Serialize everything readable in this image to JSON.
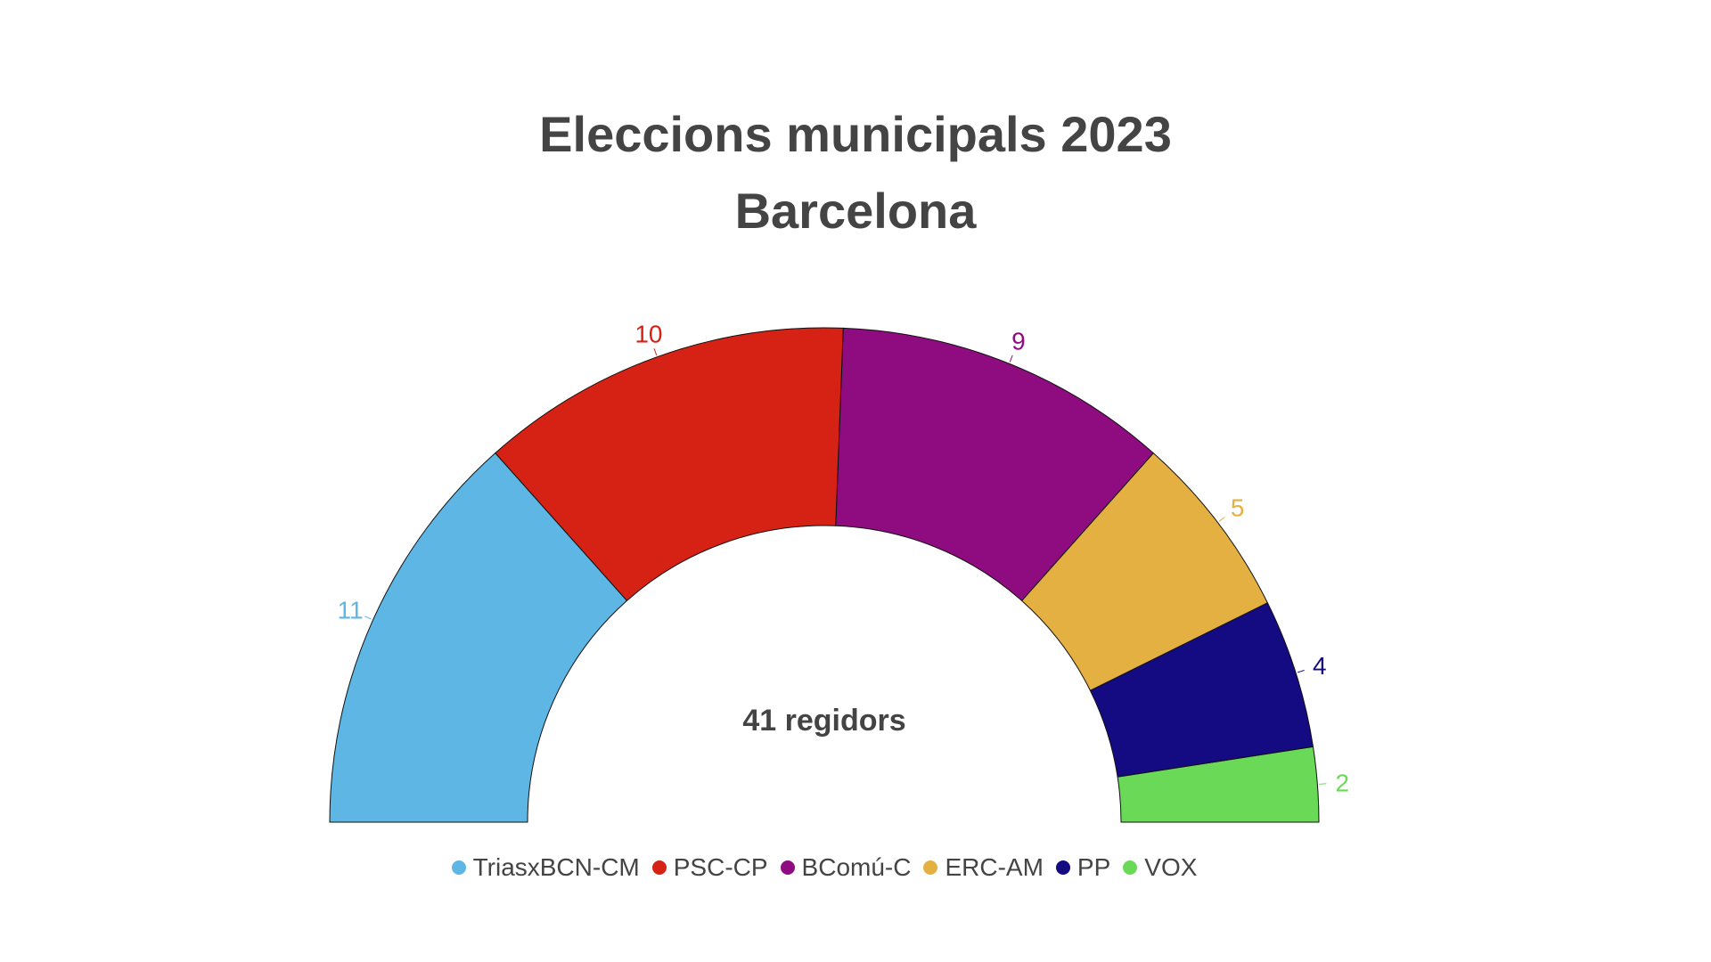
{
  "chart_data": {
    "type": "parliament",
    "title": "Eleccions municipals 2023",
    "subtitle": "Barcelona",
    "center_label": "41 regidors",
    "total": 41,
    "legend_position": "bottom",
    "series": [
      {
        "name": "TriasxBCN-CM",
        "value": 11,
        "color": "#5EB6E4"
      },
      {
        "name": "PSC-CP",
        "value": 10,
        "color": "#D62215"
      },
      {
        "name": "BComú-C",
        "value": 9,
        "color": "#8E0C80"
      },
      {
        "name": "ERC-AM",
        "value": 5,
        "color": "#E4B042"
      },
      {
        "name": "PP",
        "value": 4,
        "color": "#140A82"
      },
      {
        "name": "VOX",
        "value": 2,
        "color": "#6AD958"
      }
    ]
  }
}
